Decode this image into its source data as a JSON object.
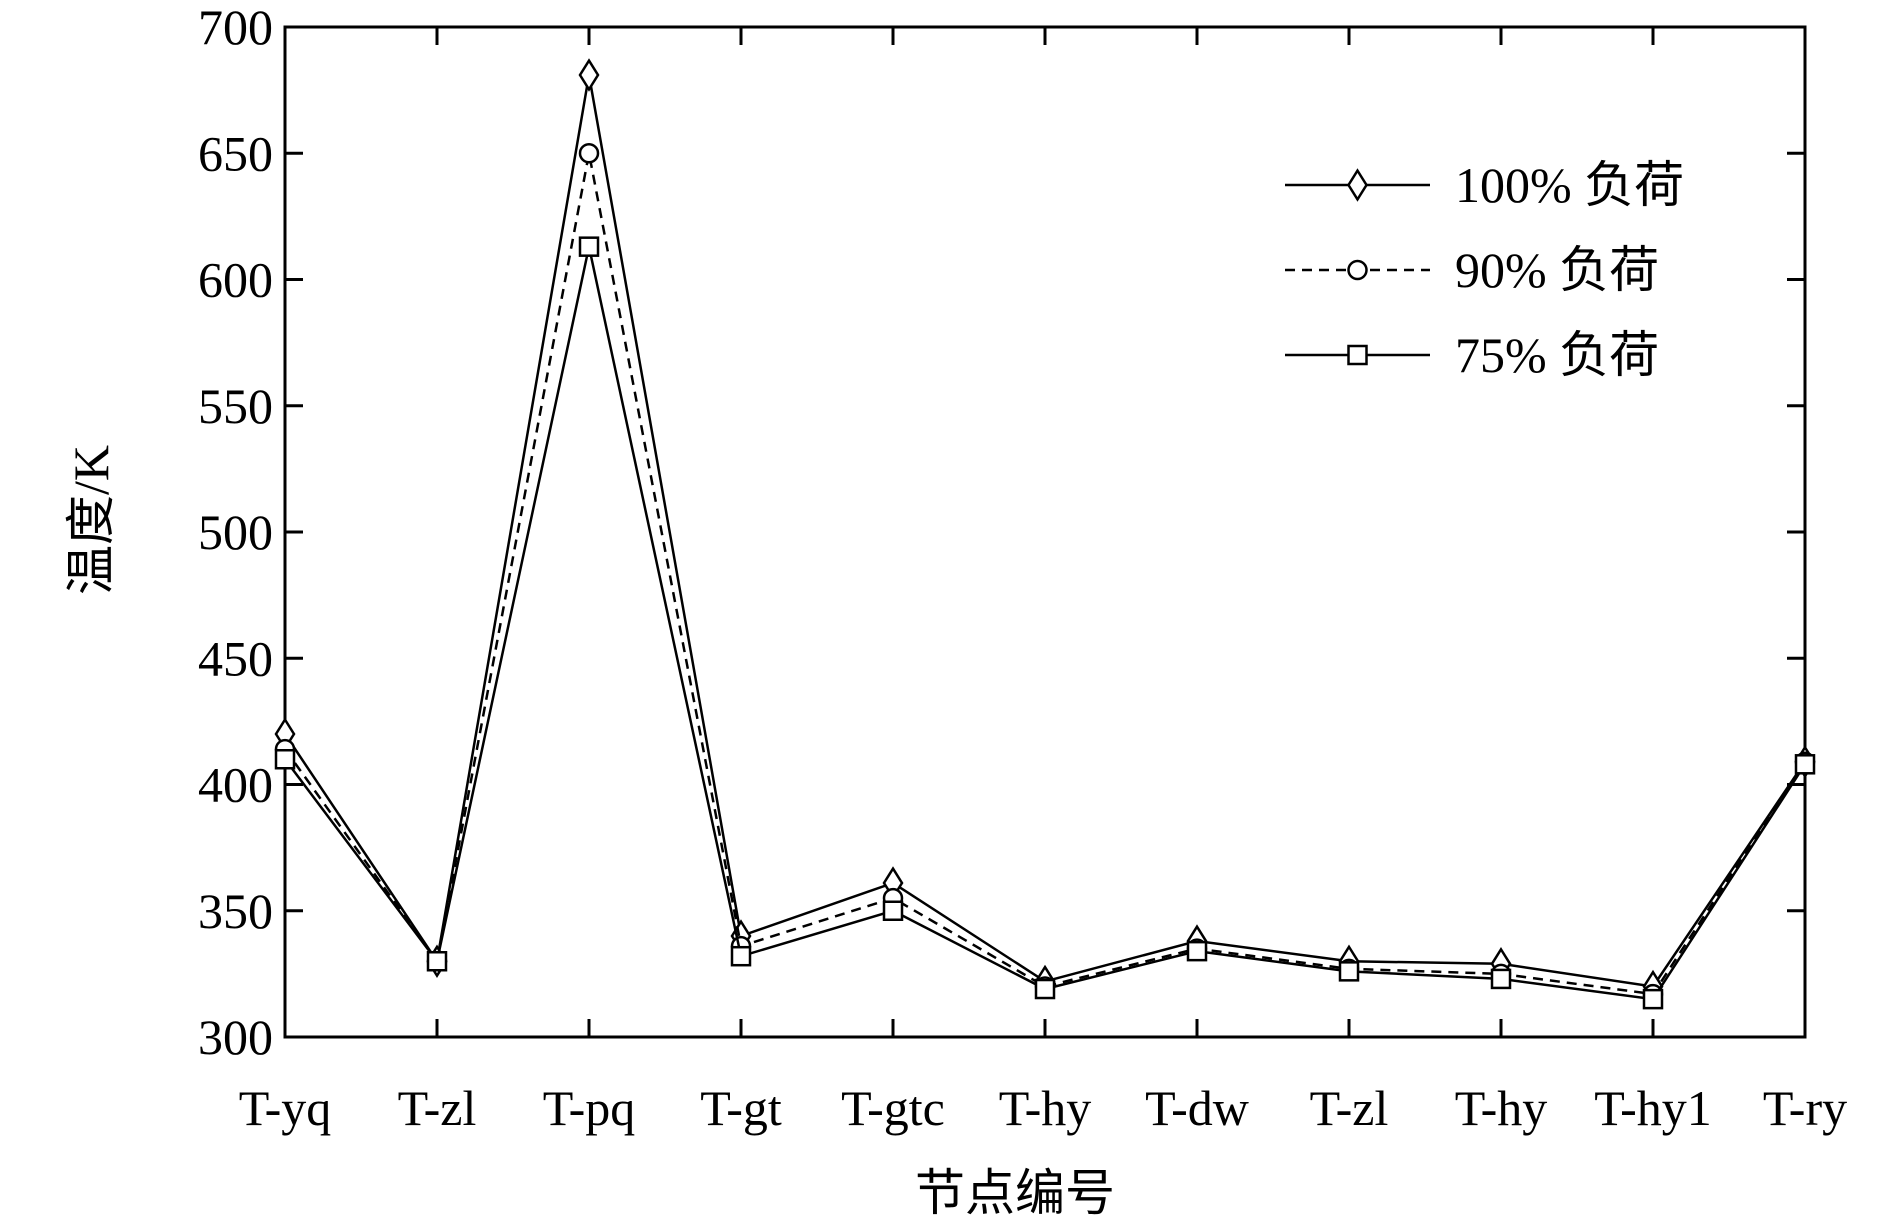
{
  "chart_data": {
    "type": "line",
    "title": "",
    "xlabel": "节点编号",
    "ylabel": "温度/K",
    "categories": [
      "T-yq",
      "T-zl",
      "T-pq",
      "T-gt",
      "T-gtc",
      "T-hy",
      "T-dw",
      "T-zl",
      "T-hy",
      "T-hy1",
      "T-ry"
    ],
    "ylim": [
      300,
      700
    ],
    "yticks": [
      300,
      350,
      400,
      450,
      500,
      550,
      600,
      650,
      700
    ],
    "grid": false,
    "legend_position": "top-right",
    "series": [
      {
        "name": "100% 负荷",
        "marker": "diamond",
        "line": "solid",
        "values": [
          420,
          330,
          681,
          340,
          361,
          322,
          338,
          330,
          329,
          320,
          409
        ]
      },
      {
        "name": "90% 负荷",
        "marker": "circle",
        "line": "dashed",
        "values": [
          414,
          330,
          650,
          336,
          355,
          320,
          335,
          327,
          325,
          317,
          409
        ]
      },
      {
        "name": "75% 负荷",
        "marker": "square",
        "line": "solid",
        "values": [
          410,
          330,
          613,
          332,
          350,
          319,
          334,
          326,
          323,
          315,
          408
        ]
      }
    ]
  }
}
